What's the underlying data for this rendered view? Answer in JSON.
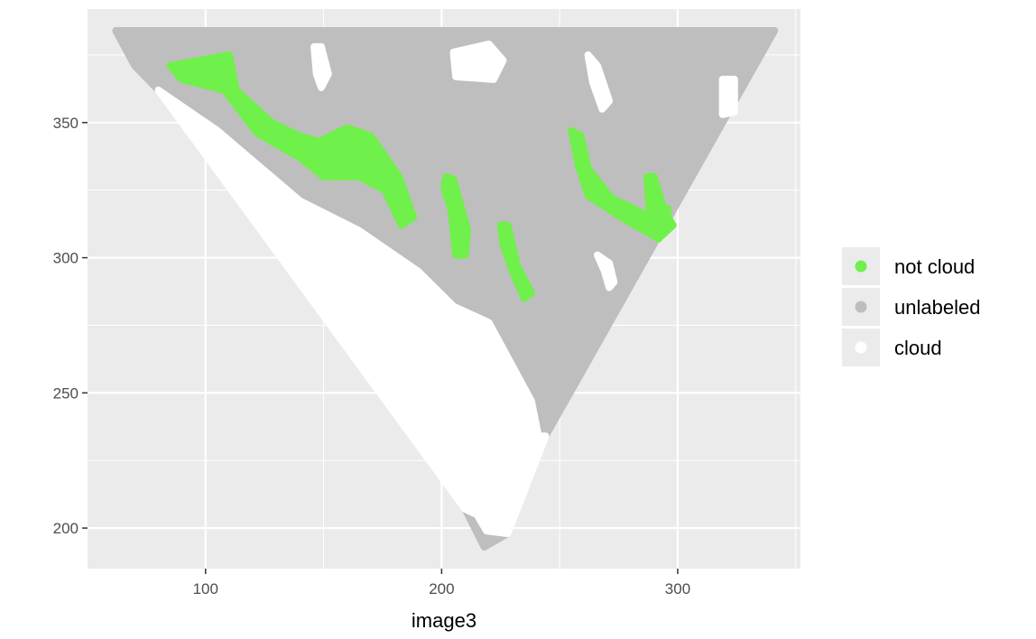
{
  "chart_data": {
    "type": "scatter",
    "title": "",
    "xlabel": "image3",
    "ylabel": "",
    "xlim": [
      50,
      352
    ],
    "ylim": [
      185,
      392
    ],
    "x_ticks": [
      100,
      200,
      300
    ],
    "y_ticks": [
      200,
      250,
      300,
      350
    ],
    "x_tick_labels": [
      "100",
      "200",
      "300"
    ],
    "y_tick_labels": [
      "200",
      "250",
      "300",
      "350"
    ],
    "grid": true,
    "legend_position": "right",
    "panel_background": "#ebebeb",
    "grid_color": "#ffffff",
    "series": [
      {
        "name": "not cloud",
        "color": "#70f04a",
        "regions": [
          [
            [
              85,
              371
            ],
            [
              110,
              375
            ],
            [
              113,
              362
            ],
            [
              128,
              350
            ],
            [
              140,
              345
            ],
            [
              148,
              343
            ],
            [
              160,
              348
            ],
            [
              170,
              345
            ],
            [
              182,
              330
            ],
            [
              188,
              315
            ],
            [
              183,
              312
            ],
            [
              176,
              325
            ],
            [
              165,
              330
            ],
            [
              150,
              330
            ],
            [
              140,
              337
            ],
            [
              122,
              346
            ],
            [
              108,
              362
            ],
            [
              90,
              366
            ]
          ],
          [
            [
              202,
              330
            ],
            [
              205,
              329
            ],
            [
              211,
              310
            ],
            [
              210,
              301
            ],
            [
              206,
              301
            ],
            [
              204,
              318
            ],
            [
              201,
              326
            ]
          ],
          [
            [
              225,
              312
            ],
            [
              228,
              312
            ],
            [
              232,
              297
            ],
            [
              238,
              287
            ],
            [
              235,
              285
            ],
            [
              230,
              295
            ],
            [
              226,
              305
            ]
          ],
          [
            [
              255,
              347
            ],
            [
              259,
              345
            ],
            [
              262,
              333
            ],
            [
              272,
              322
            ],
            [
              284,
              317
            ],
            [
              291,
              312
            ],
            [
              296,
              318
            ],
            [
              292,
              307
            ],
            [
              288,
              309
            ],
            [
              276,
              315
            ],
            [
              262,
              323
            ],
            [
              258,
              334
            ]
          ],
          [
            [
              287,
              330
            ],
            [
              290,
              330
            ],
            [
              294,
              318
            ],
            [
              298,
              312
            ],
            [
              293,
              308
            ],
            [
              288,
              317
            ]
          ]
        ]
      },
      {
        "name": "unlabeled",
        "color": "#bebebe",
        "regions": [
          [
            [
              62,
              384
            ],
            [
              341,
              384
            ],
            [
              244,
              234
            ],
            [
              241,
              234
            ],
            [
              238,
              247
            ],
            [
              220,
              276
            ],
            [
              205,
              282
            ],
            [
              190,
              295
            ],
            [
              165,
              310
            ],
            [
              140,
              321
            ],
            [
              105,
              347
            ],
            [
              80,
              362
            ],
            [
              70,
              371
            ]
          ],
          [
            [
              210,
              207
            ],
            [
              218,
              193
            ],
            [
              228,
              198
            ],
            [
              219,
              199
            ],
            [
              215,
              205
            ]
          ]
        ]
      },
      {
        "name": "cloud",
        "color": "#ffffff",
        "regions": [
          [
            [
              80,
              362
            ],
            [
              105,
              347
            ],
            [
              140,
              321
            ],
            [
              165,
              310
            ],
            [
              190,
              295
            ],
            [
              205,
              282
            ],
            [
              220,
              276
            ],
            [
              238,
              247
            ],
            [
              241,
              234
            ],
            [
              244,
              234
            ],
            [
              228,
              198
            ],
            [
              219,
              199
            ],
            [
              215,
              205
            ],
            [
              210,
              207
            ]
          ],
          [
            [
              205,
              376
            ],
            [
              220,
              379
            ],
            [
              226,
              373
            ],
            [
              222,
              366
            ],
            [
              206,
              367
            ]
          ],
          [
            [
              146,
              378
            ],
            [
              149,
              378
            ],
            [
              152,
              368
            ],
            [
              149,
              363
            ],
            [
              147,
              368
            ]
          ],
          [
            [
              262,
              375
            ],
            [
              266,
              371
            ],
            [
              271,
              358
            ],
            [
              268,
              355
            ],
            [
              264,
              365
            ]
          ],
          [
            [
              266,
              301
            ],
            [
              271,
              298
            ],
            [
              273,
              291
            ],
            [
              271,
              289
            ],
            [
              269,
              295
            ]
          ],
          [
            [
              319,
              366
            ],
            [
              324,
              366
            ],
            [
              324,
              354
            ],
            [
              319,
              353
            ]
          ]
        ]
      }
    ]
  }
}
